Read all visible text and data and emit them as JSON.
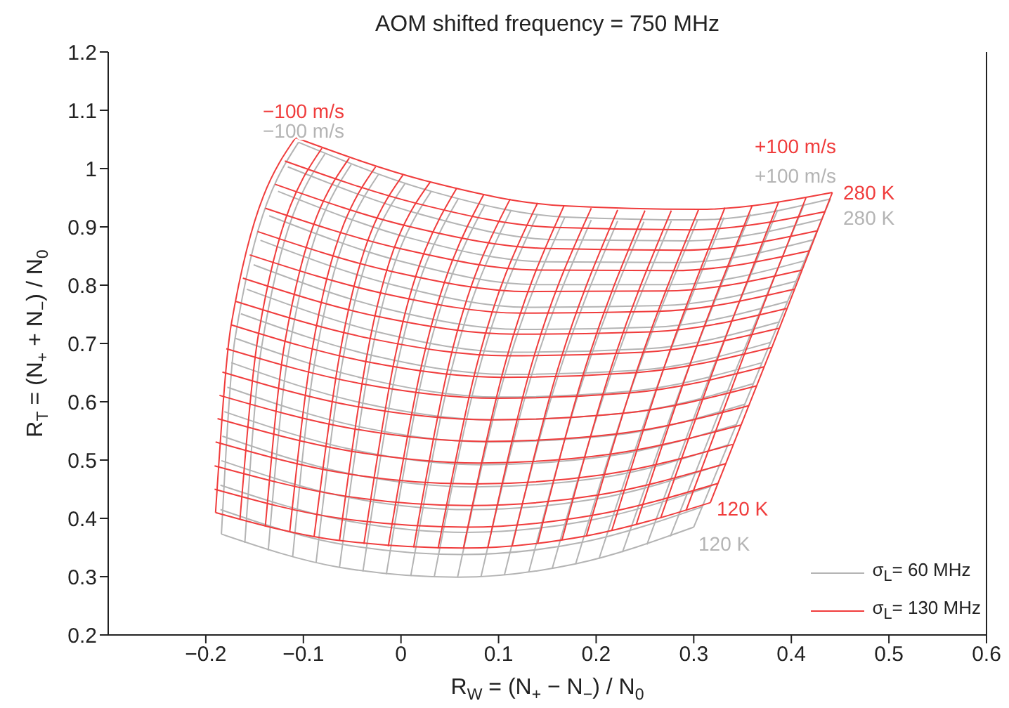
{
  "chart_data": {
    "type": "line",
    "title": "AOM shifted frequency = 750 MHz",
    "xlabel": "R$_{W}$ = (N$_{+}$ − N$_{−}$) / N$_{0}$",
    "ylabel": "R$_{T}$ = (N$_{+}$ + N$_{−}$) / N$_{0}$",
    "xlim": [
      -0.3,
      0.6
    ],
    "xticks": [
      {
        "value": -0.2,
        "label": "−0.2"
      },
      {
        "value": -0.1,
        "label": "−0.1"
      },
      0,
      0.1,
      0.2,
      0.3,
      0.4,
      0.5,
      0.6
    ],
    "ylim": [
      0.2,
      1.2
    ],
    "yticks": [
      0.2,
      0.3,
      0.4,
      0.5,
      0.6,
      0.7,
      0.8,
      0.9,
      1,
      1.1,
      1.2
    ],
    "legend": "bottom right",
    "annotations": [
      "−100 m/s",
      "−100 m/s",
      "+100 m/s",
      "+100 m/s",
      "280 K",
      "280 K",
      "120 K",
      "120 K"
    ],
    "series": [
      {
        "name": "σ$_{L}$= 60 MHz",
        "color": "#b4b4b4",
        "x": [
          -0.184,
          -0.063,
          0.058,
          0.179,
          0.3
        ],
        "values": [
          0.373,
          0.316,
          0.299,
          0.322,
          0.385
        ]
      },
      {
        "color": "#b4b4b4",
        "x": [
          -0.185,
          -0.062,
          0.062,
          0.186,
          0.309
        ],
        "values": [
          0.415,
          0.356,
          0.338,
          0.359,
          0.42
        ]
      },
      {
        "color": "#b4b4b4",
        "x": [
          -0.185,
          -0.059,
          0.067,
          0.192,
          0.318
        ],
        "values": [
          0.457,
          0.397,
          0.376,
          0.396,
          0.455
        ]
      },
      {
        "color": "#b4b4b4",
        "x": [
          -0.184,
          -0.057,
          0.071,
          0.199,
          0.326
        ],
        "values": [
          0.499,
          0.437,
          0.415,
          0.433,
          0.491
        ]
      },
      {
        "color": "#b4b4b4",
        "x": [
          -0.183,
          -0.054,
          0.076,
          0.206,
          0.335
        ],
        "values": [
          0.541,
          0.477,
          0.454,
          0.47,
          0.526
        ]
      },
      {
        "color": "#b4b4b4",
        "x": [
          -0.181,
          -0.05,
          0.082,
          0.213,
          0.344
        ],
        "values": [
          0.583,
          0.518,
          0.492,
          0.507,
          0.561
        ]
      },
      {
        "color": "#b4b4b4",
        "x": [
          -0.178,
          -0.045,
          0.088,
          0.22,
          0.353
        ],
        "values": [
          0.625,
          0.558,
          0.531,
          0.543,
          0.596
        ]
      },
      {
        "color": "#b4b4b4",
        "x": [
          -0.174,
          -0.04,
          0.094,
          0.227,
          0.361
        ],
        "values": [
          0.667,
          0.598,
          0.569,
          0.58,
          0.631
        ]
      },
      {
        "color": "#b4b4b4",
        "x": [
          -0.17,
          -0.035,
          0.1,
          0.235,
          0.37
        ],
        "values": [
          0.709,
          0.639,
          0.608,
          0.618,
          0.667
        ]
      },
      {
        "color": "#b4b4b4",
        "x": [
          -0.164,
          -0.028,
          0.108,
          0.243,
          0.379
        ],
        "values": [
          0.751,
          0.679,
          0.647,
          0.654,
          0.702
        ]
      },
      {
        "color": "#b4b4b4",
        "x": [
          -0.158,
          -0.022,
          0.115,
          0.252,
          0.388
        ],
        "values": [
          0.793,
          0.719,
          0.685,
          0.691,
          0.737
        ]
      },
      {
        "color": "#b4b4b4",
        "x": [
          -0.151,
          -0.014,
          0.123,
          0.259,
          0.396
        ],
        "values": [
          0.835,
          0.759,
          0.724,
          0.728,
          0.772
        ]
      },
      {
        "color": "#b4b4b4",
        "x": [
          -0.144,
          -0.007,
          0.131,
          0.268,
          0.405
        ],
        "values": [
          0.877,
          0.8,
          0.762,
          0.765,
          0.807
        ]
      },
      {
        "color": "#b4b4b4",
        "x": [
          -0.135,
          0.002,
          0.14,
          0.277,
          0.414
        ],
        "values": [
          0.919,
          0.84,
          0.801,
          0.801,
          0.842
        ]
      },
      {
        "color": "#b4b4b4",
        "x": [
          -0.126,
          0.011,
          0.149,
          0.286,
          0.423
        ],
        "values": [
          0.961,
          0.88,
          0.84,
          0.839,
          0.878
        ]
      },
      {
        "color": "#b4b4b4",
        "x": [
          -0.116,
          0.021,
          0.158,
          0.294,
          0.431
        ],
        "values": [
          1.003,
          0.921,
          0.878,
          0.876,
          0.913
        ]
      },
      {
        "color": "#b4b4b4",
        "x": [
          -0.105,
          0.031,
          0.168,
          0.304,
          0.44
        ],
        "values": [
          1.045,
          0.961,
          0.917,
          0.912,
          0.948
        ]
      },
      {
        "color": "#b4b4b4",
        "x": [
          -0.184,
          -0.17,
          -0.105
        ],
        "values": [
          0.373,
          0.709,
          1.045
        ]
      },
      {
        "color": "#b4b4b4",
        "x": [
          -0.16,
          -0.143,
          -0.078
        ],
        "values": [
          0.358,
          0.692,
          1.025
        ]
      },
      {
        "color": "#b4b4b4",
        "x": [
          -0.136,
          -0.116,
          -0.051
        ],
        "values": [
          0.345,
          0.676,
          1.007
        ]
      },
      {
        "color": "#b4b4b4",
        "x": [
          -0.111,
          -0.089,
          -0.023
        ],
        "values": [
          0.334,
          0.662,
          0.99
        ]
      },
      {
        "color": "#b4b4b4",
        "x": [
          -0.087,
          -0.062,
          0.004
        ],
        "values": [
          0.324,
          0.649,
          0.974
        ]
      },
      {
        "color": "#b4b4b4",
        "x": [
          -0.063,
          -0.035,
          0.031
        ],
        "values": [
          0.316,
          0.639,
          0.961
        ]
      },
      {
        "color": "#b4b4b4",
        "x": [
          -0.039,
          -0.008,
          0.059
        ],
        "values": [
          0.309,
          0.629,
          0.949
        ]
      },
      {
        "color": "#b4b4b4",
        "x": [
          -0.015,
          0.019,
          0.086
        ],
        "values": [
          0.304,
          0.622,
          0.938
        ]
      },
      {
        "color": "#b4b4b4",
        "x": [
          0.01,
          0.046,
          0.113
        ],
        "values": [
          0.301,
          0.615,
          0.929
        ]
      },
      {
        "color": "#b4b4b4",
        "x": [
          0.034,
          0.073,
          0.14
        ],
        "values": [
          0.299,
          0.611,
          0.922
        ]
      },
      {
        "color": "#b4b4b4",
        "x": [
          0.058,
          0.1,
          0.168
        ],
        "values": [
          0.299,
          0.608,
          0.917
        ]
      },
      {
        "color": "#b4b4b4",
        "x": [
          0.082,
          0.127,
          0.195
        ],
        "values": [
          0.3,
          0.607,
          0.912
        ]
      },
      {
        "color": "#b4b4b4",
        "x": [
          0.106,
          0.154,
          0.222
        ],
        "values": [
          0.303,
          0.607,
          0.91
        ]
      },
      {
        "color": "#b4b4b4",
        "x": [
          0.131,
          0.181,
          0.249
        ],
        "values": [
          0.308,
          0.609,
          0.909
        ]
      },
      {
        "color": "#b4b4b4",
        "x": [
          0.155,
          0.208,
          0.277
        ],
        "values": [
          0.314,
          0.612,
          0.91
        ]
      },
      {
        "color": "#b4b4b4",
        "x": [
          0.179,
          0.235,
          0.304
        ],
        "values": [
          0.322,
          0.618,
          0.912
        ]
      },
      {
        "color": "#b4b4b4",
        "x": [
          0.203,
          0.262,
          0.331
        ],
        "values": [
          0.331,
          0.624,
          0.916
        ]
      },
      {
        "color": "#b4b4b4",
        "x": [
          0.227,
          0.289,
          0.358
        ],
        "values": [
          0.342,
          0.633,
          0.922
        ]
      },
      {
        "color": "#b4b4b4",
        "x": [
          0.252,
          0.316,
          0.386
        ],
        "values": [
          0.355,
          0.642,
          0.929
        ]
      },
      {
        "color": "#b4b4b4",
        "x": [
          0.276,
          0.343,
          0.413
        ],
        "values": [
          0.369,
          0.654,
          0.938
        ]
      },
      {
        "color": "#b4b4b4",
        "x": [
          0.3,
          0.37,
          0.44
        ],
        "values": [
          0.385,
          0.667,
          0.948
        ]
      },
      {
        "name": "σ$_{L}$= 130 MHz",
        "color": "#f03c3c",
        "x": [
          -0.19,
          -0.063,
          0.064,
          0.19,
          0.317
        ],
        "values": [
          0.41,
          0.362,
          0.349,
          0.37,
          0.427
        ]
      },
      {
        "color": "#f03c3c",
        "x": [
          -0.191,
          -0.062,
          0.067,
          0.196,
          0.325
        ],
        "values": [
          0.45,
          0.4,
          0.385,
          0.405,
          0.46
        ]
      },
      {
        "color": "#f03c3c",
        "x": [
          -0.191,
          -0.06,
          0.071,
          0.202,
          0.333
        ],
        "values": [
          0.49,
          0.439,
          0.422,
          0.44,
          0.494
        ]
      },
      {
        "color": "#f03c3c",
        "x": [
          -0.19,
          -0.057,
          0.075,
          0.208,
          0.34
        ],
        "values": [
          0.531,
          0.477,
          0.459,
          0.475,
          0.527
        ]
      },
      {
        "color": "#f03c3c",
        "x": [
          -0.188,
          -0.054,
          0.08,
          0.214,
          0.348
        ],
        "values": [
          0.571,
          0.516,
          0.495,
          0.51,
          0.56
        ]
      },
      {
        "color": "#f03c3c",
        "x": [
          -0.186,
          -0.05,
          0.085,
          0.221,
          0.356
        ],
        "values": [
          0.611,
          0.554,
          0.532,
          0.545,
          0.593
        ]
      },
      {
        "color": "#f03c3c",
        "x": [
          -0.183,
          -0.046,
          0.091,
          0.227,
          0.364
        ],
        "values": [
          0.651,
          0.592,
          0.569,
          0.58,
          0.627
        ]
      },
      {
        "color": "#f03c3c",
        "x": [
          -0.179,
          -0.041,
          0.097,
          0.234,
          0.372
        ],
        "values": [
          0.691,
          0.631,
          0.606,
          0.615,
          0.66
        ]
      },
      {
        "color": "#f03c3c",
        "x": [
          -0.174,
          -0.036,
          0.103,
          0.241,
          0.38
        ],
        "values": [
          0.732,
          0.669,
          0.642,
          0.65,
          0.693
        ]
      },
      {
        "color": "#f03c3c",
        "x": [
          -0.169,
          -0.03,
          0.109,
          0.248,
          0.387
        ],
        "values": [
          0.772,
          0.708,
          0.679,
          0.685,
          0.726
        ]
      },
      {
        "color": "#f03c3c",
        "x": [
          -0.162,
          -0.023,
          0.117,
          0.256,
          0.395
        ],
        "values": [
          0.812,
          0.746,
          0.716,
          0.72,
          0.76
        ]
      },
      {
        "color": "#f03c3c",
        "x": [
          -0.155,
          -0.016,
          0.124,
          0.263,
          0.403
        ],
        "values": [
          0.852,
          0.785,
          0.752,
          0.755,
          0.793
        ]
      },
      {
        "color": "#f03c3c",
        "x": [
          -0.147,
          -0.008,
          0.132,
          0.271,
          0.411
        ],
        "values": [
          0.892,
          0.823,
          0.789,
          0.79,
          0.826
        ]
      },
      {
        "color": "#f03c3c",
        "x": [
          -0.139,
          0.001,
          0.14,
          0.279,
          0.419
        ],
        "values": [
          0.932,
          0.862,
          0.826,
          0.825,
          0.859
        ]
      },
      {
        "color": "#f03c3c",
        "x": [
          -0.129,
          0.01,
          0.149,
          0.288,
          0.426
        ],
        "values": [
          0.973,
          0.9,
          0.863,
          0.86,
          0.893
        ]
      },
      {
        "color": "#f03c3c",
        "x": [
          -0.119,
          0.019,
          0.158,
          0.296,
          0.434
        ],
        "values": [
          1.013,
          0.939,
          0.899,
          0.895,
          0.926
        ]
      },
      {
        "color": "#f03c3c",
        "x": [
          -0.108,
          0.03,
          0.167,
          0.305,
          0.442
        ],
        "values": [
          1.053,
          0.977,
          0.936,
          0.93,
          0.959
        ]
      },
      {
        "color": "#f03c3c",
        "x": [
          -0.19,
          -0.174,
          -0.108
        ],
        "values": [
          0.41,
          0.732,
          1.053
        ]
      },
      {
        "color": "#f03c3c",
        "x": [
          -0.165,
          -0.146,
          -0.081
        ],
        "values": [
          0.398,
          0.716,
          1.035
        ]
      },
      {
        "color": "#f03c3c",
        "x": [
          -0.139,
          -0.119,
          -0.053
        ],
        "values": [
          0.386,
          0.702,
          1.018
        ]
      },
      {
        "color": "#f03c3c",
        "x": [
          -0.114,
          -0.091,
          -0.026
        ],
        "values": [
          0.377,
          0.69,
          1.003
        ]
      },
      {
        "color": "#f03c3c",
        "x": [
          -0.089,
          -0.063,
          0.002
        ],
        "values": [
          0.369,
          0.679,
          0.989
        ]
      },
      {
        "color": "#f03c3c",
        "x": [
          -0.063,
          -0.036,
          0.03
        ],
        "values": [
          0.362,
          0.669,
          0.977
        ]
      },
      {
        "color": "#f03c3c",
        "x": [
          -0.038,
          -0.008,
          0.057
        ],
        "values": [
          0.356,
          0.661,
          0.966
        ]
      },
      {
        "color": "#f03c3c",
        "x": [
          -0.013,
          0.02,
          0.085
        ],
        "values": [
          0.352,
          0.654,
          0.956
        ]
      },
      {
        "color": "#f03c3c",
        "x": [
          0.013,
          0.047,
          0.112
        ],
        "values": [
          0.35,
          0.649,
          0.948
        ]
      },
      {
        "color": "#f03c3c",
        "x": [
          0.038,
          0.075,
          0.14
        ],
        "values": [
          0.348,
          0.645,
          0.941
        ]
      },
      {
        "color": "#f03c3c",
        "x": [
          0.064,
          0.103,
          0.167
        ],
        "values": [
          0.349,
          0.642,
          0.936
        ]
      },
      {
        "color": "#f03c3c",
        "x": [
          0.089,
          0.13,
          0.195
        ],
        "values": [
          0.35,
          0.641,
          0.932
        ]
      },
      {
        "color": "#f03c3c",
        "x": [
          0.114,
          0.158,
          0.222
        ],
        "values": [
          0.353,
          0.641,
          0.929
        ]
      },
      {
        "color": "#f03c3c",
        "x": [
          0.14,
          0.186,
          0.25
        ],
        "values": [
          0.357,
          0.643,
          0.928
        ]
      },
      {
        "color": "#f03c3c",
        "x": [
          0.165,
          0.213,
          0.277
        ],
        "values": [
          0.363,
          0.646,
          0.928
        ]
      },
      {
        "color": "#f03c3c",
        "x": [
          0.19,
          0.241,
          0.305
        ],
        "values": [
          0.37,
          0.65,
          0.93
        ]
      },
      {
        "color": "#f03c3c",
        "x": [
          0.216,
          0.269,
          0.332
        ],
        "values": [
          0.379,
          0.656,
          0.933
        ]
      },
      {
        "color": "#f03c3c",
        "x": [
          0.241,
          0.296,
          0.36
        ],
        "values": [
          0.389,
          0.663,
          0.937
        ]
      },
      {
        "color": "#f03c3c",
        "x": [
          0.266,
          0.324,
          0.387
        ],
        "values": [
          0.4,
          0.672,
          0.943
        ]
      },
      {
        "color": "#f03c3c",
        "x": [
          0.292,
          0.352,
          0.415
        ],
        "values": [
          0.413,
          0.682,
          0.95
        ]
      },
      {
        "color": "#f03c3c",
        "x": [
          0.317,
          0.38,
          0.442
        ],
        "values": [
          0.427,
          0.693,
          0.959
        ]
      }
    ]
  }
}
